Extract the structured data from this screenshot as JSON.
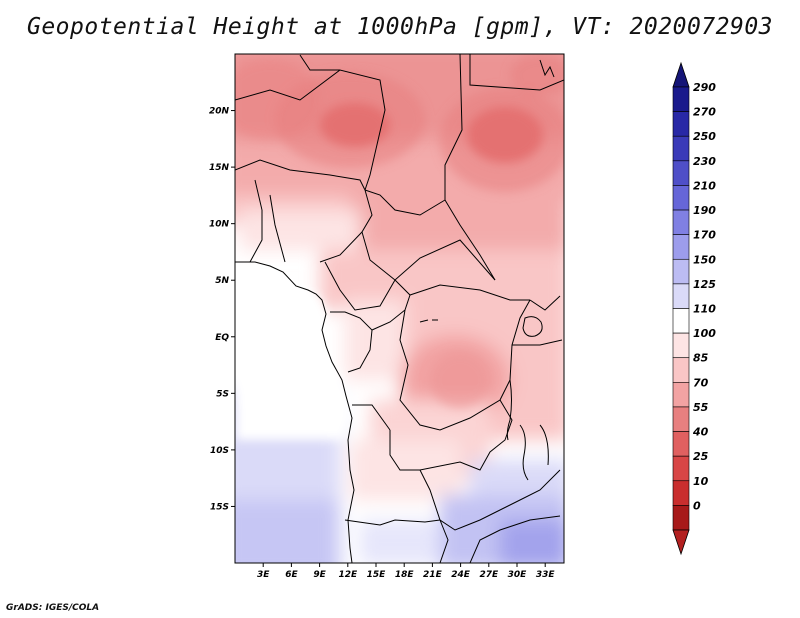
{
  "title": "Geopotential Height at 1000hPa [gpm], VT: 2020072903",
  "credit": "GrADS: IGES/COLA",
  "map": {
    "lat_range": [
      -20,
      25
    ],
    "lon_range": [
      0,
      35
    ],
    "lat_ticks": [
      {
        "lat": 20,
        "label": "20N"
      },
      {
        "lat": 15,
        "label": "15N"
      },
      {
        "lat": 10,
        "label": "10N"
      },
      {
        "lat": 5,
        "label": "5N"
      },
      {
        "lat": 0,
        "label": "EQ"
      },
      {
        "lat": -5,
        "label": "5S"
      },
      {
        "lat": -10,
        "label": "10S"
      },
      {
        "lat": -15,
        "label": "15S"
      }
    ],
    "lon_ticks": [
      {
        "lon": 3,
        "label": "3E"
      },
      {
        "lon": 6,
        "label": "6E"
      },
      {
        "lon": 9,
        "label": "9E"
      },
      {
        "lon": 12,
        "label": "12E"
      },
      {
        "lon": 15,
        "label": "15E"
      },
      {
        "lon": 18,
        "label": "18E"
      },
      {
        "lon": 21,
        "label": "21E"
      },
      {
        "lon": 24,
        "label": "24E"
      },
      {
        "lon": 27,
        "label": "27E"
      },
      {
        "lon": 30,
        "label": "30E"
      },
      {
        "lon": 33,
        "label": "33E"
      }
    ]
  },
  "colorbar": {
    "levels": [
      {
        "label": "290",
        "color": "#1a1a8c"
      },
      {
        "label": "270",
        "color": "#2828a6"
      },
      {
        "label": "250",
        "color": "#3a3ab8"
      },
      {
        "label": "230",
        "color": "#4f4fc8"
      },
      {
        "label": "210",
        "color": "#6666d8"
      },
      {
        "label": "190",
        "color": "#8080e3"
      },
      {
        "label": "170",
        "color": "#9d9dec"
      },
      {
        "label": "150",
        "color": "#bcbcf3"
      },
      {
        "label": "125",
        "color": "#dadaf8"
      },
      {
        "label": "110",
        "color": "#ffffff"
      },
      {
        "label": "100",
        "color": "#fde4e4"
      },
      {
        "label": "85",
        "color": "#f9c6c6"
      },
      {
        "label": "70",
        "color": "#f2a3a3"
      },
      {
        "label": "55",
        "color": "#e88080"
      },
      {
        "label": "40",
        "color": "#e06060"
      },
      {
        "label": "25",
        "color": "#d84646"
      },
      {
        "label": "10",
        "color": "#c92e2e"
      },
      {
        "label": "0",
        "color": "#a71a1a"
      }
    ],
    "top_color": "#151577",
    "bottom_color": "#b32020"
  }
}
